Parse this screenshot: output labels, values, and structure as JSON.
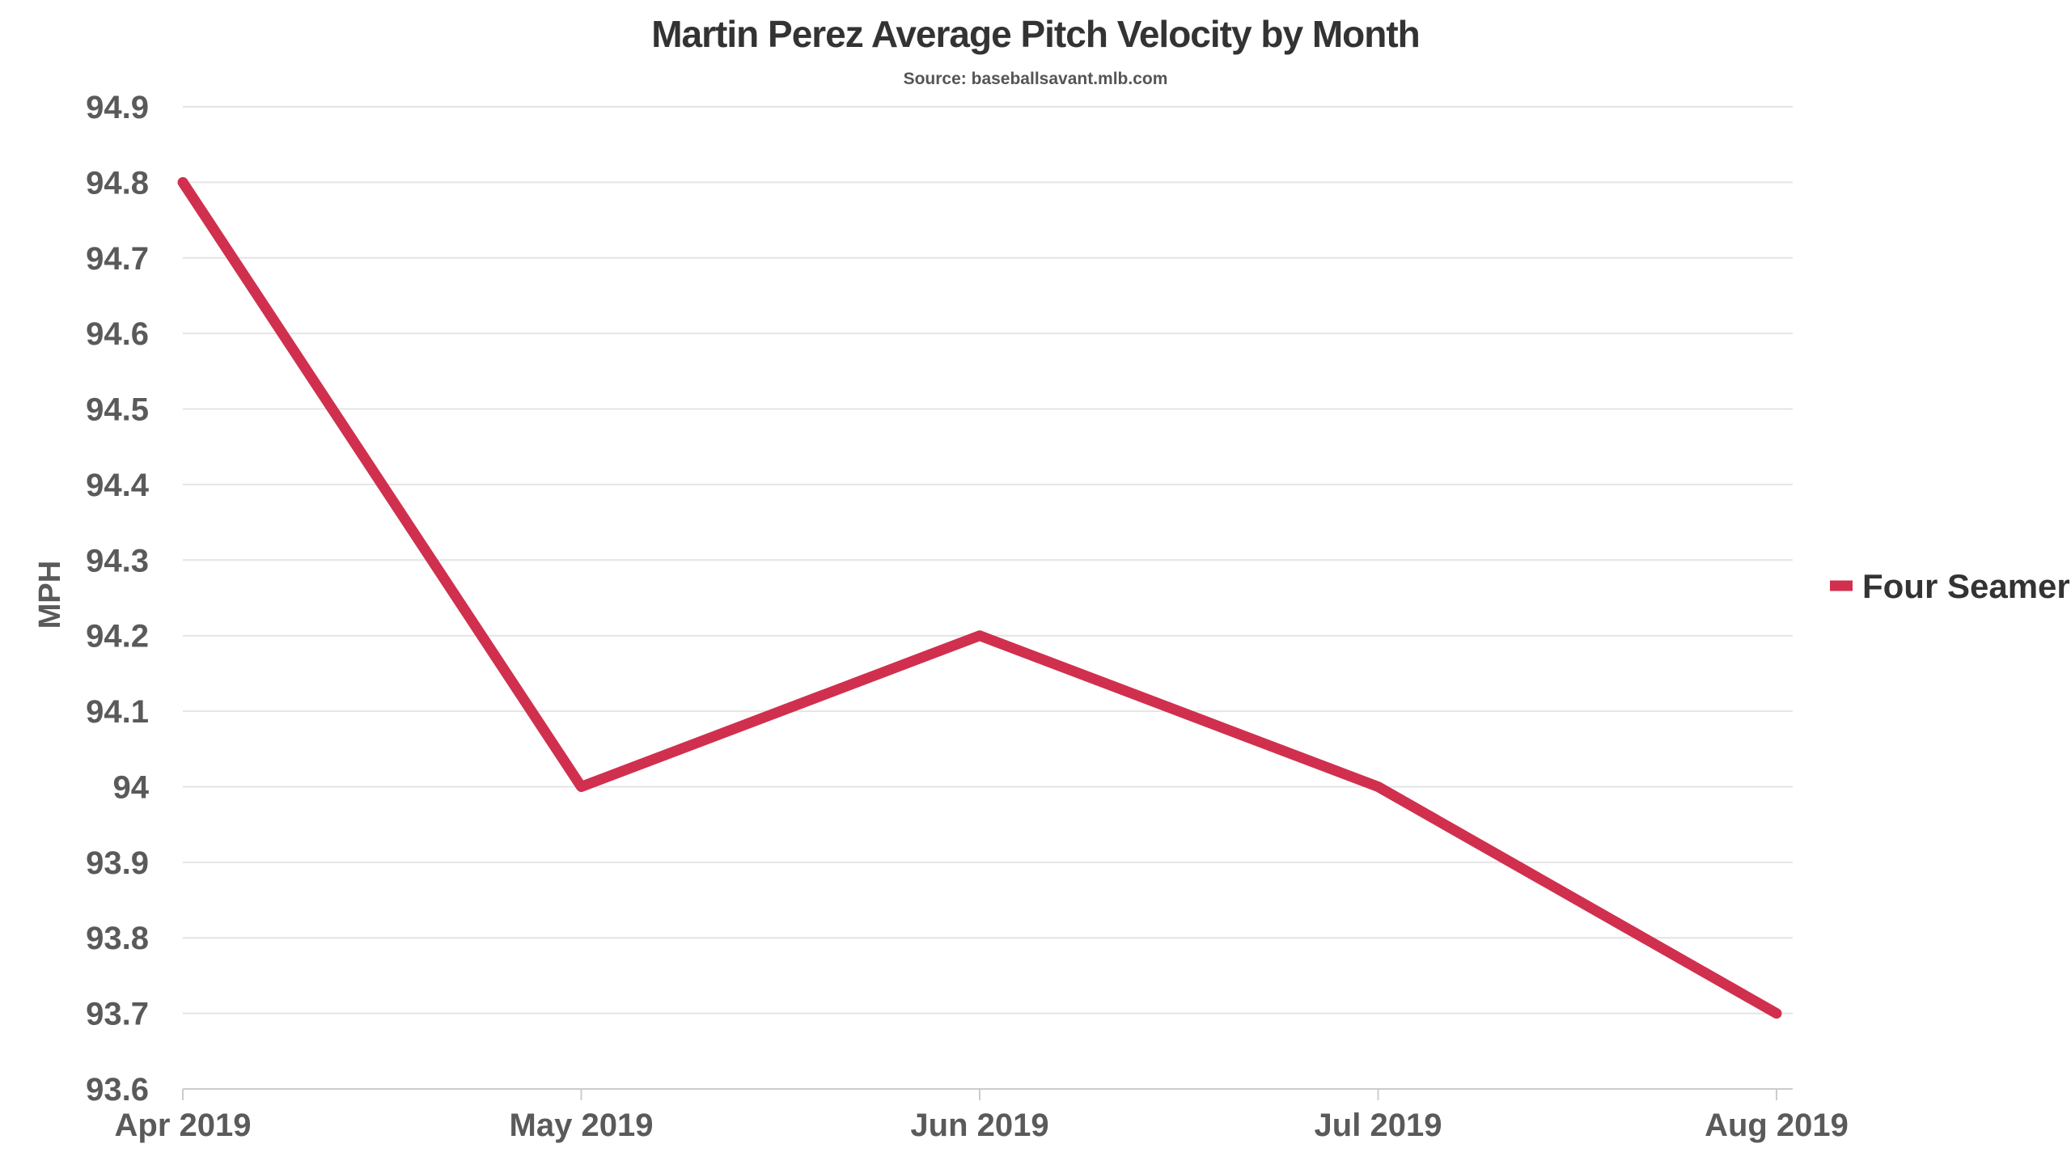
{
  "chart_data": {
    "type": "line",
    "title": "Martin Perez Average Pitch Velocity by Month",
    "subtitle": "Source: baseballsavant.mlb.com",
    "xlabel": "",
    "ylabel": "MPH",
    "categories": [
      "Apr 2019",
      "May 2019",
      "Jun 2019",
      "Jul 2019",
      "Aug 2019"
    ],
    "series": [
      {
        "name": "Four Seamer",
        "color": "#d0304e",
        "values": [
          94.8,
          94.0,
          94.2,
          94.0,
          93.7
        ]
      }
    ],
    "ylim": [
      93.6,
      94.9
    ],
    "yticks": [
      "93.6",
      "93.7",
      "93.8",
      "93.9",
      "94",
      "94.1",
      "94.2",
      "94.3",
      "94.4",
      "94.5",
      "94.6",
      "94.7",
      "94.8",
      "94.9"
    ],
    "grid": true,
    "legend_position": "right"
  }
}
